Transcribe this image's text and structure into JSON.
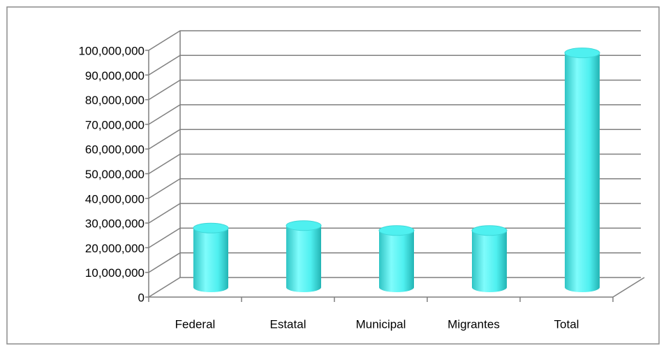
{
  "chart_data": {
    "type": "bar3d",
    "categories": [
      "Federal",
      "Estatal",
      "Municipal",
      "Migrantes",
      "Total"
    ],
    "values": [
      24000000,
      25000000,
      23000000,
      23000000,
      95000000
    ],
    "color": "#4ff0f0",
    "ylim": [
      0,
      100000000
    ],
    "yticks": [
      0,
      {
        "value": 10000000,
        "label": "10,000,000"
      },
      {
        "value": 20000000,
        "label": "20,000,000"
      },
      {
        "value": 30000000,
        "label": "30,000,000"
      },
      {
        "value": 40000000,
        "label": "40,000,000"
      },
      {
        "value": 50000000,
        "label": "50,000,000"
      },
      {
        "value": 60000000,
        "label": "60,000,000"
      },
      {
        "value": 70000000,
        "label": "70,000,000"
      },
      {
        "value": 80000000,
        "label": "80,000,000"
      },
      {
        "value": 90000000,
        "label": "90,000,000"
      },
      {
        "value": 100000000,
        "label": "100,000,000"
      }
    ],
    "grid": true
  }
}
